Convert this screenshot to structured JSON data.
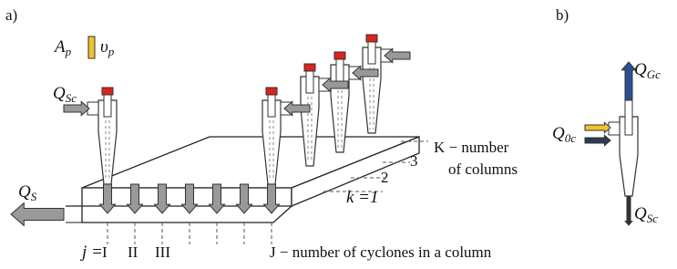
{
  "panel_a": {
    "label": "a)",
    "particle": {
      "area": {
        "main": "A",
        "sub": "p"
      },
      "velocity": {
        "main": "υ",
        "sub": "p"
      }
    },
    "inflow": {
      "main": "Q",
      "sub": "Sc"
    },
    "outflow": {
      "main": "Q",
      "sub": "S"
    },
    "cyclone_index": [
      "j =",
      "I",
      "II",
      "III"
    ],
    "cyclone_count": "J − number of cyclones in a column",
    "column_count": [
      "K − number",
      "of columns"
    ],
    "column_index": [
      "3",
      "2",
      "k =1"
    ]
  },
  "panel_b": {
    "label": "b)",
    "gas_out": {
      "main": "Q",
      "sub": "Gc"
    },
    "inlet": {
      "main": "Q",
      "sub": "0c"
    },
    "solids_out": {
      "main": "Q",
      "sub": "Sc"
    }
  }
}
